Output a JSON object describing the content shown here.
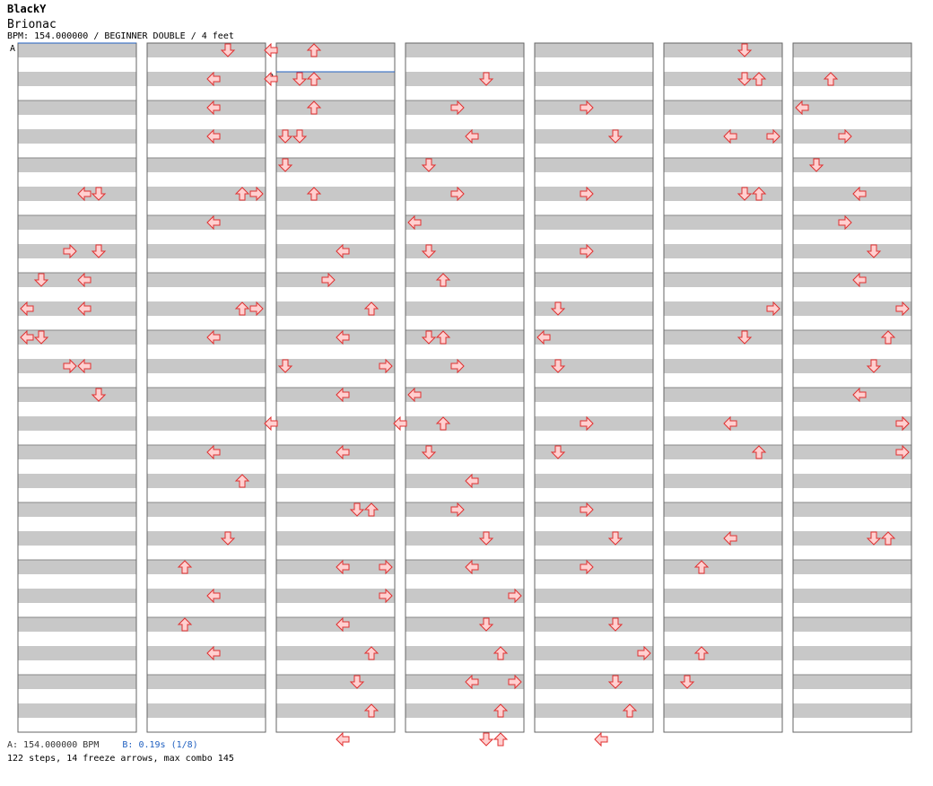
{
  "header": {
    "artist": "BlackY",
    "song": "Brionac",
    "info": "BPM: 154.000000 / BEGINNER DOUBLE / 4 feet"
  },
  "footer": {
    "bpm_a": "A: 154.000000 BPM",
    "bpm_b": "B: 0.19s (1/8)",
    "stats": "122 steps, 14 freeze arrows, max combo 145"
  },
  "markers": [
    {
      "label": "A",
      "column": 0,
      "beat": 0
    },
    {
      "label": "B",
      "column": 2,
      "beat": 1
    }
  ],
  "colors": {
    "stripe": "#c8c8c8",
    "arrow_fill": "#ffd0d0",
    "arrow_stroke": "#e03030",
    "freeze_fill": "#d0ffd0",
    "freeze_stroke": "#30a030",
    "marker_line": "#2060c0"
  },
  "chart_data": {
    "type": "step-chart",
    "lanes": [
      "L1",
      "D1",
      "U1",
      "R1",
      "L2",
      "D2",
      "U2",
      "R2"
    ],
    "beats_per_column": 24,
    "columns": 7,
    "notes": [
      [
        [
          10,
          4
        ],
        [
          10,
          5
        ],
        [
          14,
          3
        ],
        [
          14,
          5
        ],
        [
          16,
          1
        ],
        [
          16,
          4
        ],
        [
          18,
          0
        ],
        [
          18,
          4
        ],
        [
          20,
          0
        ],
        [
          20,
          1
        ],
        [
          22,
          3
        ],
        [
          22,
          4
        ],
        [
          24,
          5
        ],
        [
          24,
          5
        ]
      ],
      [
        [
          0,
          5
        ],
        [
          0,
          8
        ],
        [
          2,
          4
        ],
        [
          2,
          8
        ],
        [
          4,
          4
        ],
        [
          6,
          4
        ],
        [
          6,
          9
        ],
        [
          8,
          9
        ],
        [
          10,
          6
        ],
        [
          10,
          7
        ],
        [
          12,
          4
        ],
        [
          18,
          6
        ],
        [
          18,
          7
        ],
        [
          20,
          4
        ],
        [
          22,
          9
        ],
        [
          26,
          8
        ],
        [
          28,
          4
        ],
        [
          30,
          6
        ],
        [
          34,
          5
        ],
        [
          36,
          2
        ],
        [
          38,
          4
        ],
        [
          40,
          2
        ],
        [
          42,
          4
        ]
      ],
      [
        [
          0,
          2
        ],
        [
          2,
          1
        ],
        [
          2,
          2
        ],
        [
          4,
          2
        ],
        [
          6,
          1
        ],
        [
          10,
          2
        ],
        [
          14,
          4
        ],
        [
          16,
          3
        ],
        [
          18,
          6
        ],
        [
          20,
          4
        ],
        [
          22,
          7
        ],
        [
          24,
          4
        ],
        [
          26,
          8
        ],
        [
          28,
          4
        ],
        [
          32,
          5
        ],
        [
          32,
          6
        ],
        [
          36,
          4
        ],
        [
          36,
          7
        ],
        [
          38,
          7
        ],
        [
          40,
          4
        ],
        [
          42,
          6
        ],
        [
          44,
          5
        ],
        [
          46,
          6
        ],
        [
          48,
          4
        ]
      ],
      [
        [
          2,
          5
        ],
        [
          4,
          3
        ],
        [
          6,
          4
        ],
        [
          8,
          1
        ],
        [
          10,
          3
        ],
        [
          12,
          0
        ],
        [
          14,
          1
        ],
        [
          16,
          2
        ],
        [
          20,
          1
        ],
        [
          20,
          2
        ],
        [
          22,
          3
        ],
        [
          24,
          0
        ],
        [
          26,
          2
        ],
        [
          28,
          1
        ],
        [
          30,
          4
        ],
        [
          32,
          3
        ],
        [
          34,
          5
        ],
        [
          36,
          4
        ],
        [
          38,
          7
        ],
        [
          40,
          5
        ],
        [
          42,
          6
        ],
        [
          44,
          4
        ],
        [
          44,
          7
        ],
        [
          46,
          6
        ],
        [
          48,
          5
        ],
        [
          48,
          6
        ]
      ],
      [
        [
          4,
          3
        ],
        [
          6,
          5
        ],
        [
          10,
          3
        ],
        [
          14,
          3
        ],
        [
          18,
          1
        ],
        [
          20,
          0
        ],
        [
          22,
          1
        ],
        [
          26,
          3
        ],
        [
          28,
          1
        ],
        [
          32,
          3
        ],
        [
          34,
          5
        ],
        [
          36,
          3
        ],
        [
          40,
          5
        ],
        [
          42,
          7
        ],
        [
          44,
          5
        ],
        [
          46,
          6
        ],
        [
          48,
          4
        ]
      ],
      [
        [
          0,
          5
        ],
        [
          2,
          5
        ],
        [
          2,
          6
        ],
        [
          6,
          4
        ],
        [
          6,
          7
        ],
        [
          10,
          5
        ],
        [
          10,
          6
        ],
        [
          18,
          7
        ],
        [
          20,
          5
        ],
        [
          26,
          4
        ],
        [
          28,
          6
        ],
        [
          34,
          4
        ],
        [
          36,
          2
        ],
        [
          42,
          2
        ],
        [
          44,
          1
        ]
      ],
      [
        [
          2,
          2
        ],
        [
          4,
          0
        ],
        [
          6,
          3
        ],
        [
          8,
          1
        ],
        [
          10,
          4
        ],
        [
          12,
          3
        ],
        [
          14,
          5
        ],
        [
          16,
          4
        ],
        [
          18,
          7
        ],
        [
          20,
          6
        ],
        [
          22,
          5
        ],
        [
          24,
          4
        ],
        [
          26,
          7
        ],
        [
          26,
          7
        ],
        [
          28,
          7
        ],
        [
          34,
          5
        ],
        [
          34,
          6
        ]
      ]
    ],
    "freezes_count": 14
  }
}
